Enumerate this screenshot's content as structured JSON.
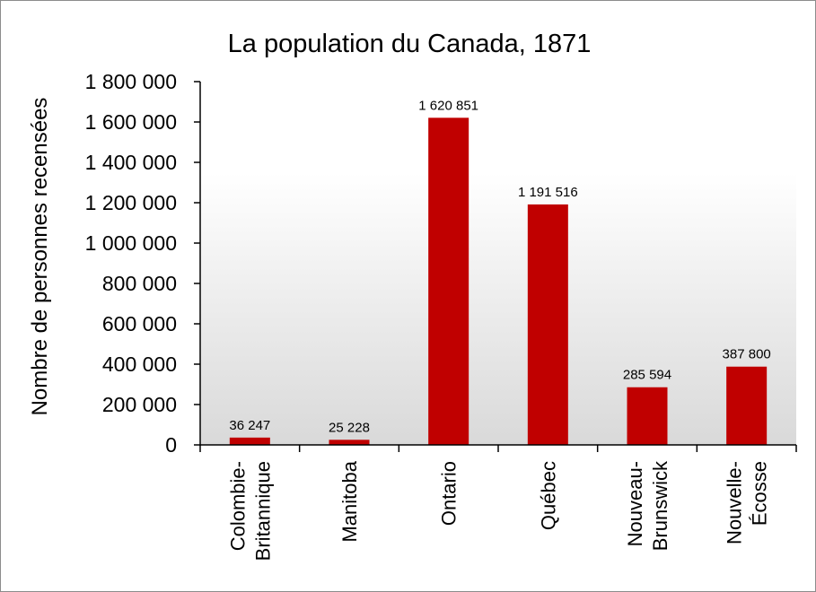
{
  "chart_data": {
    "type": "bar",
    "title": "La population  du Canada, 1871",
    "xlabel": "",
    "ylabel": "Nombre de personnes recensées",
    "categories": [
      [
        "Colombie-",
        "Britannique"
      ],
      [
        "Manitoba"
      ],
      [
        "Ontario"
      ],
      [
        "Québec"
      ],
      [
        "Nouveau-",
        "Brunswick"
      ],
      [
        "Nouvelle-",
        "Écosse"
      ]
    ],
    "values": [
      36247,
      25228,
      1620851,
      1191516,
      285594,
      387800
    ],
    "data_labels": [
      "36 247",
      "25 228",
      "1 620 851",
      "1 191 516",
      "285 594",
      "387 800"
    ],
    "yticks": [
      0,
      200000,
      400000,
      600000,
      800000,
      1000000,
      1200000,
      1400000,
      1600000,
      1800000
    ],
    "ytick_labels": [
      "0",
      "200 000",
      "400 000",
      "600 000",
      "800 000",
      "1 000 000",
      "1 200 000",
      "1 400 000",
      "1 600 000",
      "1 800 000"
    ],
    "ylim": [
      0,
      1800000
    ],
    "grid": false,
    "legend": "none",
    "bar_color": "#c00000"
  }
}
